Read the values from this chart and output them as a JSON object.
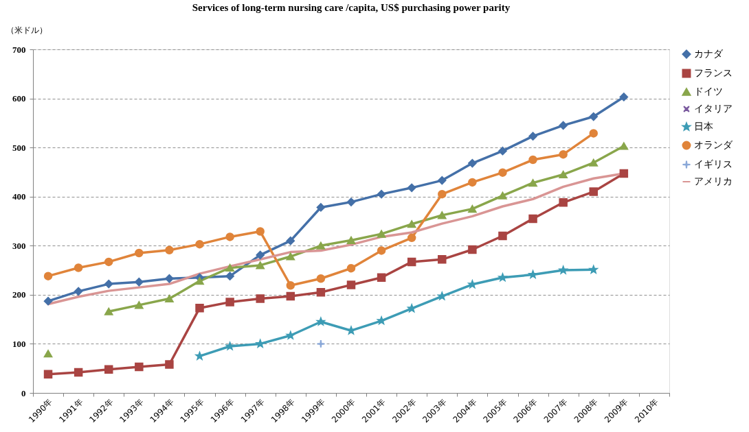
{
  "chart_data": {
    "type": "line",
    "title": "Services of long-term nursing care  /capita, US$ purchasing power parity",
    "ylabel": "（米ドル）",
    "categories": [
      "1990年",
      "1991年",
      "1992年",
      "1993年",
      "1994年",
      "1995年",
      "1996年",
      "1997年",
      "1998年",
      "1999年",
      "2000年",
      "2001年",
      "2002年",
      "2003年",
      "2004年",
      "2005年",
      "2006年",
      "2007年",
      "2008年",
      "2009年",
      "2010年"
    ],
    "series": [
      {
        "name": "カナダ",
        "color": "#4470a8",
        "marker": "diamond",
        "values": [
          187,
          207,
          222,
          226,
          233,
          235,
          238,
          281,
          310,
          378,
          389,
          405,
          418,
          433,
          468,
          493,
          523,
          545,
          563,
          603,
          null
        ]
      },
      {
        "name": "フランス",
        "color": "#a94442",
        "marker": "square",
        "values": [
          38,
          42,
          48,
          53,
          58,
          173,
          185,
          192,
          197,
          205,
          220,
          235,
          267,
          272,
          292,
          320,
          355,
          388,
          410,
          447,
          null
        ]
      },
      {
        "name": "ドイツ",
        "color": "#89a64b",
        "marker": "triangle",
        "values": [
          80,
          null,
          166,
          179,
          192,
          228,
          255,
          260,
          278,
          300,
          311,
          324,
          344,
          362,
          375,
          402,
          428,
          445,
          469,
          503,
          null
        ]
      },
      {
        "name": "イタリア",
        "color": "#7a5a9e",
        "marker": "x",
        "values": [
          null,
          null,
          null,
          null,
          null,
          null,
          null,
          null,
          null,
          null,
          null,
          null,
          null,
          null,
          null,
          null,
          null,
          null,
          null,
          null,
          null
        ]
      },
      {
        "name": "日本",
        "color": "#3d9cb5",
        "marker": "star",
        "values": [
          null,
          null,
          null,
          null,
          null,
          75,
          95,
          100,
          117,
          145,
          127,
          147,
          172,
          197,
          221,
          235,
          241,
          250,
          251,
          null,
          null
        ]
      },
      {
        "name": "オランダ",
        "color": "#e0843a",
        "marker": "circle",
        "values": [
          238,
          255,
          267,
          285,
          291,
          303,
          318,
          329,
          219,
          233,
          254,
          290,
          316,
          405,
          429,
          449,
          475,
          486,
          529,
          null,
          null
        ]
      },
      {
        "name": "イギリス",
        "color": "#8aa8d8",
        "marker": "cross",
        "values": [
          null,
          null,
          null,
          null,
          null,
          null,
          null,
          null,
          null,
          100,
          null,
          null,
          null,
          null,
          null,
          null,
          null,
          null,
          null,
          null,
          null
        ]
      },
      {
        "name": "アメリカ",
        "color": "#d99594",
        "marker": "none",
        "values": [
          181,
          196,
          208,
          215,
          222,
          243,
          258,
          272,
          287,
          290,
          302,
          318,
          327,
          345,
          360,
          380,
          395,
          420,
          437,
          447,
          null
        ]
      }
    ],
    "ylim": [
      0,
      700
    ],
    "yticks": [
      0,
      100,
      200,
      300,
      400,
      500,
      600,
      700
    ],
    "grid": "y",
    "legend": "right"
  }
}
